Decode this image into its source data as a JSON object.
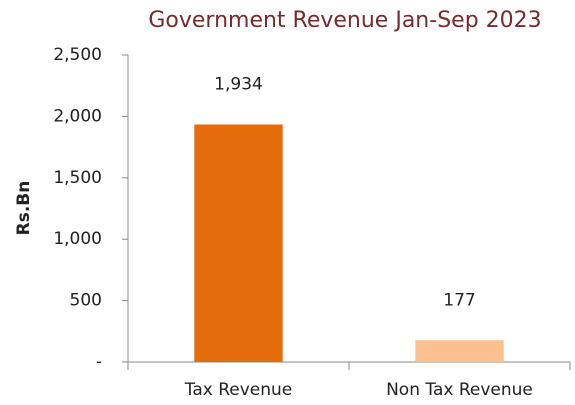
{
  "chart_data": {
    "type": "bar",
    "title": "Government Revenue Jan-Sep 2023",
    "y_label": "Rs.Bn",
    "categories": [
      "Tax Revenue",
      "Non Tax Revenue"
    ],
    "values": [
      1934,
      177
    ],
    "value_labels": [
      "1,934",
      "177"
    ],
    "colors": [
      "#e46c0a",
      "#fac090"
    ],
    "ylim": [
      0,
      2500
    ],
    "yticks": [
      {
        "value": 0,
        "label": "-"
      },
      500,
      {
        "value": 1000,
        "label": "1,000"
      },
      {
        "value": 1500,
        "label": "1,500"
      },
      {
        "value": 2000,
        "label": "2,000"
      },
      {
        "value": 2500,
        "label": "2,500"
      }
    ],
    "grid": false
  }
}
